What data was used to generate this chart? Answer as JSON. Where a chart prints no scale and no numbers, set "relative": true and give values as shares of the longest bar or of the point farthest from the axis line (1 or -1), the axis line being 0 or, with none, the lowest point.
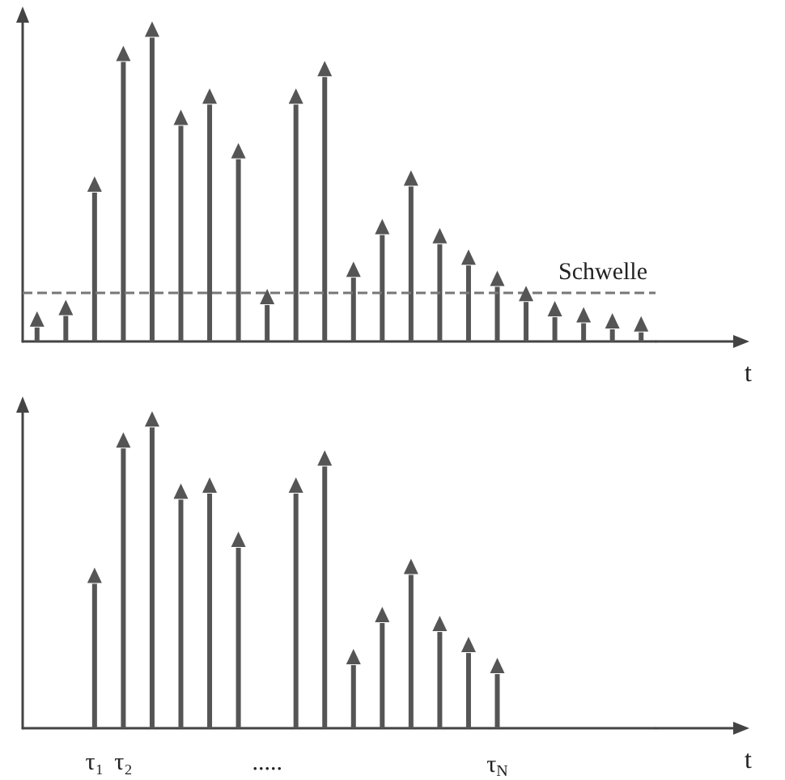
{
  "chart_data": [
    {
      "type": "bar",
      "relative": true,
      "xlabel": "t",
      "marker": "triangle",
      "categories": [
        null,
        null,
        null,
        null,
        null,
        null,
        null,
        null,
        null,
        null,
        null,
        null,
        null,
        null,
        null,
        null,
        null,
        null,
        null,
        null,
        null,
        null
      ],
      "series": [
        {
          "color": "#555555",
          "values": [
            0.046,
            0.084,
            0.49,
            0.92,
            1,
            0.71,
            0.78,
            0.6,
            0.12,
            0.78,
            0.87,
            0.21,
            0.35,
            0.51,
            0.32,
            0.25,
            0.18,
            0.13,
            0.08,
            0.06,
            0.04,
            0.03
          ]
        }
      ],
      "ref_lines": [
        {
          "axis": "y",
          "value": 0.16,
          "label": "Schwelle",
          "color": "#777777",
          "line_style": "dashed"
        }
      ]
    },
    {
      "type": "bar",
      "relative": true,
      "xlabel": "t",
      "marker": "triangle",
      "categories": [
        null,
        null,
        "τ₁",
        "τ₂",
        null,
        null,
        null,
        null,
        ".....",
        null,
        null,
        null,
        null,
        null,
        null,
        null,
        "τ$_{N}$",
        null,
        null,
        null,
        null,
        null
      ],
      "series": [
        {
          "color": "#555555",
          "values": [
            null,
            null,
            0.48,
            0.93,
            1,
            0.76,
            0.78,
            0.6,
            null,
            0.78,
            0.87,
            0.21,
            0.35,
            0.51,
            0.32,
            0.25,
            0.18,
            null,
            null,
            null,
            null,
            null
          ]
        }
      ]
    }
  ]
}
